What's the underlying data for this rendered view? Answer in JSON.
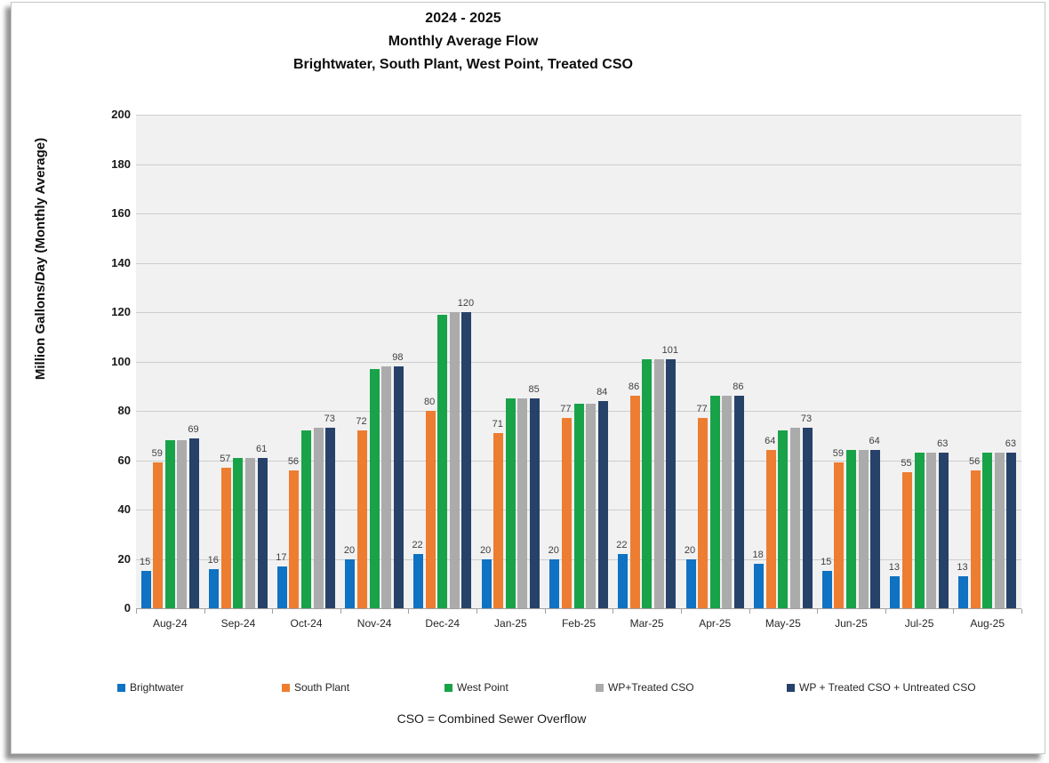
{
  "chart_data": {
    "type": "bar",
    "title_lines": [
      "2024 - 2025",
      "Monthly Average Flow",
      "Brightwater, South Plant, West Point, Treated CSO"
    ],
    "ylabel": "Million Gallons/Day (Monthly Average)",
    "ylim": [
      0,
      200
    ],
    "ytick_interval": 20,
    "grid": true,
    "legend_position": "bottom",
    "plot_bg_color": "#f1f1f1",
    "gridline_color": "#cdcdcd",
    "axis_color": "#a0a0a0",
    "value_label_color": "#404040",
    "categories": [
      "Aug-24",
      "Sep-24",
      "Oct-24",
      "Nov-24",
      "Dec-24",
      "Jan-25",
      "Feb-25",
      "Mar-25",
      "Apr-25",
      "May-25",
      "Jun-25",
      "Jul-25",
      "Aug-25"
    ],
    "series": [
      {
        "name": "Brightwater",
        "color": "#0f72c2",
        "show_labels": true,
        "values": [
          15,
          16,
          17,
          20,
          22,
          20,
          20,
          22,
          20,
          18,
          15,
          13,
          13
        ]
      },
      {
        "name": "South Plant",
        "color": "#ed7d31",
        "show_labels": true,
        "values": [
          59,
          57,
          56,
          72,
          80,
          71,
          77,
          86,
          77,
          64,
          59,
          55,
          56
        ]
      },
      {
        "name": "West Point",
        "color": "#18a348",
        "show_labels": false,
        "values": [
          68,
          61,
          72,
          97,
          119,
          85,
          83,
          101,
          86,
          72,
          64,
          63,
          63
        ]
      },
      {
        "name": "WP+Treated CSO",
        "color": "#ababab",
        "show_labels": false,
        "values": [
          68,
          61,
          73,
          98,
          120,
          85,
          83,
          101,
          86,
          73,
          64,
          63,
          63
        ]
      },
      {
        "name": "WP + Treated CSO + Untreated CSO",
        "color": "#264269",
        "show_labels": true,
        "values": [
          69,
          61,
          73,
          98,
          120,
          85,
          84,
          101,
          86,
          73,
          64,
          63,
          63
        ]
      }
    ],
    "footnote": "CSO = Combined Sewer Overflow"
  }
}
